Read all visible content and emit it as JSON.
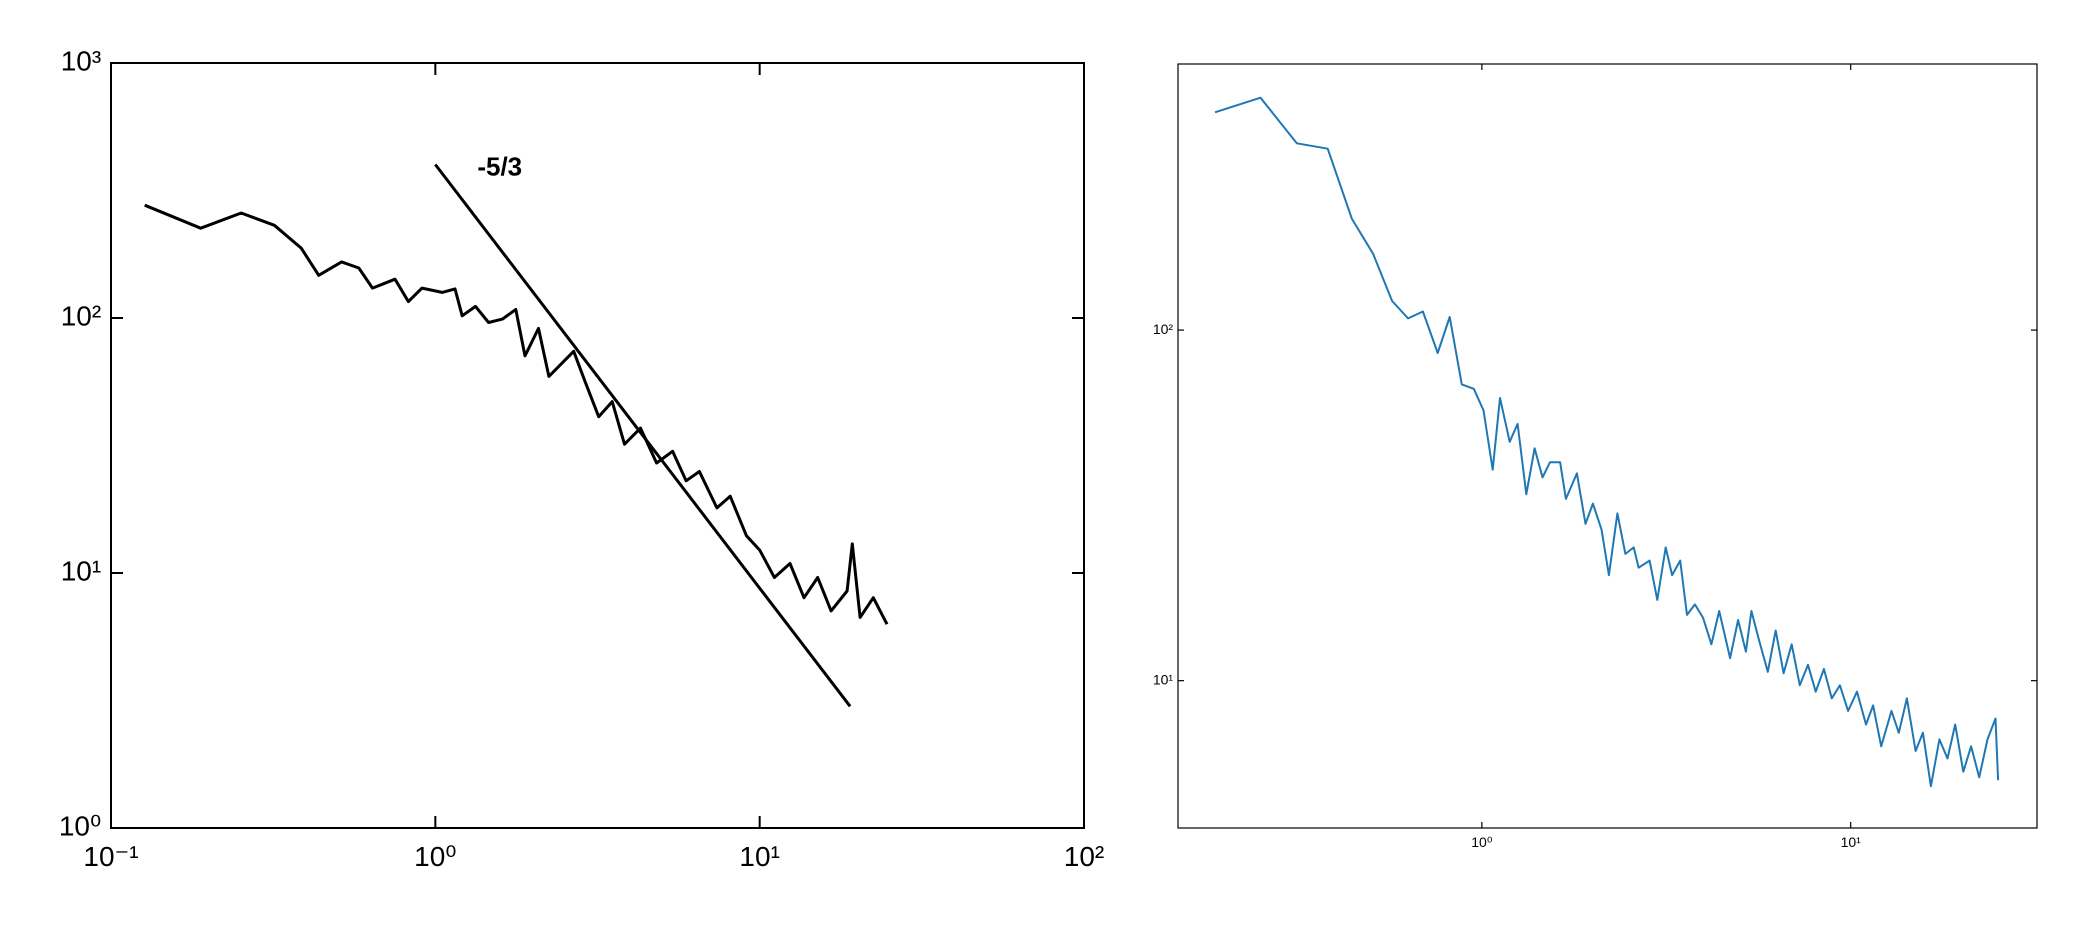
{
  "chart_data": [
    {
      "type": "line",
      "log_x": true,
      "log_y": true,
      "color": "#000000",
      "line_width": 3,
      "xlim": [
        0.1,
        100
      ],
      "ylim": [
        1,
        1000
      ],
      "xticks": [
        {
          "value": 0.1,
          "label": "10⁻¹"
        },
        {
          "value": 1,
          "label": "10⁰"
        },
        {
          "value": 10,
          "label": "10¹"
        },
        {
          "value": 100,
          "label": "10²"
        }
      ],
      "yticks": [
        {
          "value": 1,
          "label": "10⁰"
        },
        {
          "value": 10,
          "label": "10¹"
        },
        {
          "value": 100,
          "label": "10²"
        },
        {
          "value": 1000,
          "label": "10³"
        }
      ],
      "x": [
        0.127,
        0.189,
        0.252,
        0.319,
        0.386,
        0.437,
        0.514,
        0.581,
        0.64,
        0.751,
        0.826,
        0.91,
        1.05,
        1.15,
        1.21,
        1.33,
        1.46,
        1.61,
        1.77,
        1.89,
        2.08,
        2.24,
        2.47,
        2.67,
        2.9,
        3.19,
        3.51,
        3.83,
        4.29,
        4.81,
        5.39,
        5.93,
        6.52,
        7.38,
        8.11,
        9.1,
        10,
        11.1,
        12.4,
        13.7,
        15.1,
        16.6,
        18.6,
        19.3,
        20.4,
        22.4,
        24.7
      ],
      "values": [
        277,
        225,
        258,
        231,
        188,
        147,
        166,
        157,
        131,
        142,
        116,
        131,
        126,
        130,
        102,
        111,
        96,
        99,
        108,
        71,
        91,
        59,
        67,
        74,
        56,
        41,
        47,
        32,
        37,
        27,
        30,
        23,
        25,
        18,
        20,
        14,
        12.3,
        9.6,
        10.9,
        8.0,
        9.6,
        7.1,
        8.5,
        13,
        6.7,
        8.0,
        6.3
      ],
      "reference_line": {
        "x": [
          1,
          19
        ],
        "values": [
          400,
          3
        ]
      },
      "annotation": "-5/3"
    },
    {
      "type": "line",
      "log_x": true,
      "log_y": true,
      "color": "#1f77b4",
      "line_width": 2,
      "xlim": [
        0.15,
        32
      ],
      "ylim": [
        3.8,
        574
      ],
      "xticks": [
        {
          "value": 1,
          "label": "10⁰"
        },
        {
          "value": 10,
          "label": "10¹"
        }
      ],
      "yticks": [
        {
          "value": 10,
          "label": "10¹"
        },
        {
          "value": 100,
          "label": "10²"
        }
      ],
      "x": [
        0.189,
        0.251,
        0.315,
        0.382,
        0.444,
        0.507,
        0.571,
        0.631,
        0.692,
        0.759,
        0.818,
        0.882,
        0.951,
        1.01,
        1.07,
        1.12,
        1.19,
        1.25,
        1.32,
        1.39,
        1.46,
        1.53,
        1.63,
        1.69,
        1.81,
        1.91,
        2.0,
        2.11,
        2.21,
        2.33,
        2.45,
        2.58,
        2.66,
        2.85,
        2.99,
        3.15,
        3.28,
        3.45,
        3.6,
        3.78,
        3.98,
        4.19,
        4.4,
        4.71,
        4.95,
        5.2,
        5.38,
        5.66,
        5.96,
        6.26,
        6.58,
        6.92,
        7.28,
        7.66,
        8.04,
        8.46,
        8.89,
        9.35,
        9.84,
        10.4,
        11.0,
        11.5,
        12.1,
        12.9,
        13.5,
        14.2,
        15.0,
        15.7,
        16.5,
        17.4,
        18.3,
        19.2,
        20.2,
        21.2,
        22.3,
        23.5,
        24.7,
        25.1
      ],
      "values": [
        418,
        460,
        341,
        329,
        208,
        165,
        121,
        108,
        113,
        86,
        109,
        70,
        68,
        59,
        40,
        64,
        48,
        54,
        34,
        46,
        38,
        42,
        42,
        33,
        39,
        28,
        32,
        27,
        20,
        30,
        23,
        24,
        21,
        22,
        17,
        24,
        20,
        22,
        15.4,
        16.5,
        15.1,
        12.7,
        15.8,
        11.6,
        14.9,
        12.1,
        15.8,
        12.9,
        10.6,
        13.9,
        10.5,
        12.7,
        9.7,
        11.1,
        9.3,
        10.8,
        8.9,
        9.7,
        8.2,
        9.3,
        7.5,
        8.5,
        6.5,
        8.2,
        7.1,
        8.9,
        6.3,
        7.1,
        5.0,
        6.8,
        6.0,
        7.5,
        5.5,
        6.5,
        5.3,
        6.8,
        7.8,
        5.2
      ]
    }
  ]
}
